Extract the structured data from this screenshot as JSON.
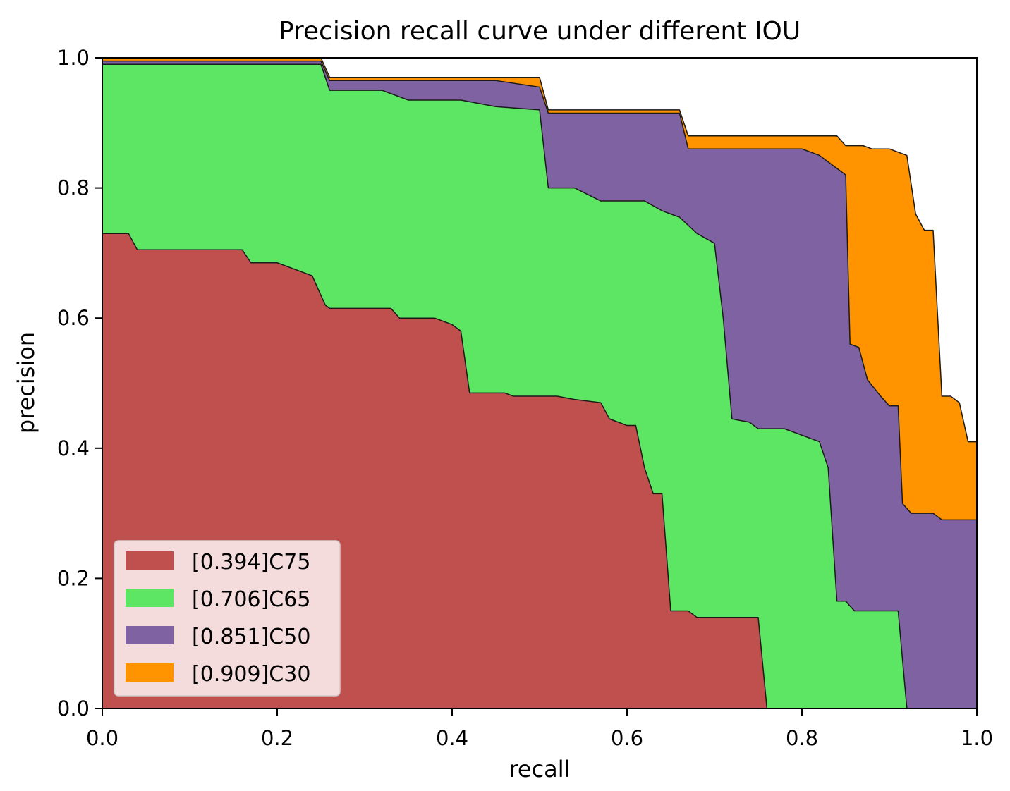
{
  "chart_data": {
    "type": "area",
    "title": "Precision recall curve under different IOU",
    "xlabel": "recall",
    "ylabel": "precision",
    "xlim": [
      0,
      1
    ],
    "ylim": [
      0,
      1
    ],
    "xticks": [
      "0.0",
      "0.2",
      "0.4",
      "0.6",
      "0.8",
      "1.0"
    ],
    "yticks": [
      "0.0",
      "0.2",
      "0.4",
      "0.6",
      "0.8",
      "1.0"
    ],
    "legend_position": "bottom-left",
    "series": [
      {
        "name": "C30",
        "label": "[0.909]C30",
        "color": "#FF9300",
        "points": [
          [
            0,
            1.0
          ],
          [
            0.25,
            1.0
          ],
          [
            0.26,
            0.97
          ],
          [
            0.5,
            0.97
          ],
          [
            0.51,
            0.92
          ],
          [
            0.66,
            0.92
          ],
          [
            0.67,
            0.88
          ],
          [
            0.84,
            0.88
          ],
          [
            0.85,
            0.865
          ],
          [
            0.87,
            0.865
          ],
          [
            0.88,
            0.86
          ],
          [
            0.9,
            0.86
          ],
          [
            0.92,
            0.85
          ],
          [
            0.93,
            0.76
          ],
          [
            0.94,
            0.735
          ],
          [
            0.95,
            0.735
          ],
          [
            0.96,
            0.48
          ],
          [
            0.97,
            0.48
          ],
          [
            0.98,
            0.47
          ],
          [
            0.99,
            0.41
          ],
          [
            1.0,
            0.41
          ]
        ]
      },
      {
        "name": "C50",
        "label": "[0.851]C50",
        "color": "#7F62A1",
        "points": [
          [
            0,
            0.995
          ],
          [
            0.25,
            0.995
          ],
          [
            0.26,
            0.965
          ],
          [
            0.45,
            0.965
          ],
          [
            0.5,
            0.955
          ],
          [
            0.51,
            0.915
          ],
          [
            0.66,
            0.915
          ],
          [
            0.67,
            0.86
          ],
          [
            0.8,
            0.86
          ],
          [
            0.82,
            0.85
          ],
          [
            0.84,
            0.83
          ],
          [
            0.85,
            0.82
          ],
          [
            0.855,
            0.56
          ],
          [
            0.865,
            0.555
          ],
          [
            0.875,
            0.505
          ],
          [
            0.89,
            0.48
          ],
          [
            0.9,
            0.465
          ],
          [
            0.91,
            0.465
          ],
          [
            0.915,
            0.315
          ],
          [
            0.925,
            0.3
          ],
          [
            0.95,
            0.3
          ],
          [
            0.96,
            0.29
          ],
          [
            1.0,
            0.29
          ]
        ]
      },
      {
        "name": "C65",
        "label": "[0.706]C65",
        "color": "#5DE564",
        "points": [
          [
            0,
            0.99
          ],
          [
            0.25,
            0.99
          ],
          [
            0.26,
            0.95
          ],
          [
            0.32,
            0.95
          ],
          [
            0.35,
            0.935
          ],
          [
            0.41,
            0.935
          ],
          [
            0.45,
            0.925
          ],
          [
            0.5,
            0.92
          ],
          [
            0.51,
            0.8
          ],
          [
            0.54,
            0.8
          ],
          [
            0.57,
            0.78
          ],
          [
            0.62,
            0.78
          ],
          [
            0.64,
            0.765
          ],
          [
            0.66,
            0.755
          ],
          [
            0.68,
            0.73
          ],
          [
            0.7,
            0.715
          ],
          [
            0.71,
            0.6
          ],
          [
            0.72,
            0.445
          ],
          [
            0.74,
            0.44
          ],
          [
            0.75,
            0.43
          ],
          [
            0.78,
            0.43
          ],
          [
            0.8,
            0.42
          ],
          [
            0.82,
            0.41
          ],
          [
            0.83,
            0.37
          ],
          [
            0.84,
            0.165
          ],
          [
            0.85,
            0.165
          ],
          [
            0.86,
            0.15
          ],
          [
            0.91,
            0.15
          ],
          [
            0.92,
            0.0
          ],
          [
            1.0,
            0.0
          ]
        ]
      },
      {
        "name": "C75",
        "label": "[0.394]C75",
        "color": "#C0504D",
        "points": [
          [
            0,
            0.73
          ],
          [
            0.03,
            0.73
          ],
          [
            0.04,
            0.705
          ],
          [
            0.16,
            0.705
          ],
          [
            0.17,
            0.685
          ],
          [
            0.2,
            0.685
          ],
          [
            0.22,
            0.675
          ],
          [
            0.24,
            0.665
          ],
          [
            0.255,
            0.62
          ],
          [
            0.26,
            0.615
          ],
          [
            0.33,
            0.615
          ],
          [
            0.34,
            0.6
          ],
          [
            0.38,
            0.6
          ],
          [
            0.4,
            0.59
          ],
          [
            0.41,
            0.58
          ],
          [
            0.42,
            0.485
          ],
          [
            0.46,
            0.485
          ],
          [
            0.47,
            0.48
          ],
          [
            0.52,
            0.48
          ],
          [
            0.54,
            0.475
          ],
          [
            0.57,
            0.47
          ],
          [
            0.58,
            0.445
          ],
          [
            0.6,
            0.435
          ],
          [
            0.61,
            0.435
          ],
          [
            0.62,
            0.37
          ],
          [
            0.63,
            0.33
          ],
          [
            0.64,
            0.33
          ],
          [
            0.65,
            0.15
          ],
          [
            0.67,
            0.15
          ],
          [
            0.68,
            0.14
          ],
          [
            0.75,
            0.14
          ],
          [
            0.76,
            0.0
          ],
          [
            1.0,
            0.0
          ]
        ]
      }
    ]
  }
}
